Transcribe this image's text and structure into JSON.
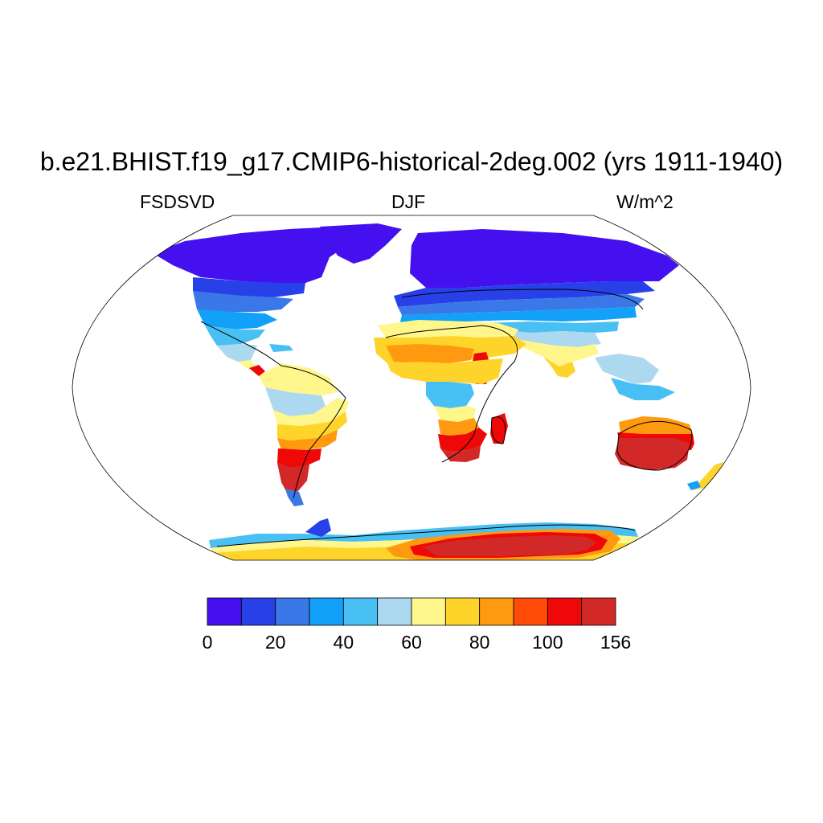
{
  "title": "b.e21.BHIST.f19_g17.CMIP6-historical-2deg.002 (yrs 1911-1940)",
  "left_label": "FSDSVD",
  "center_label": "DJF",
  "right_label": "W/m^2",
  "colorbar": {
    "colors": [
      "#4410f0",
      "#2840e8",
      "#3a78e8",
      "#12a0f8",
      "#48c0f4",
      "#acd8f0",
      "#fff68c",
      "#ffd42a",
      "#ff9a10",
      "#ff4a08",
      "#ee0808",
      "#d22828"
    ],
    "tick_labels": [
      "0",
      "20",
      "40",
      "60",
      "80",
      "100",
      "156"
    ]
  },
  "map": {
    "projection": "Robinson",
    "variable": "FSDSVD",
    "season": "DJF",
    "units": "W/m^2"
  }
}
